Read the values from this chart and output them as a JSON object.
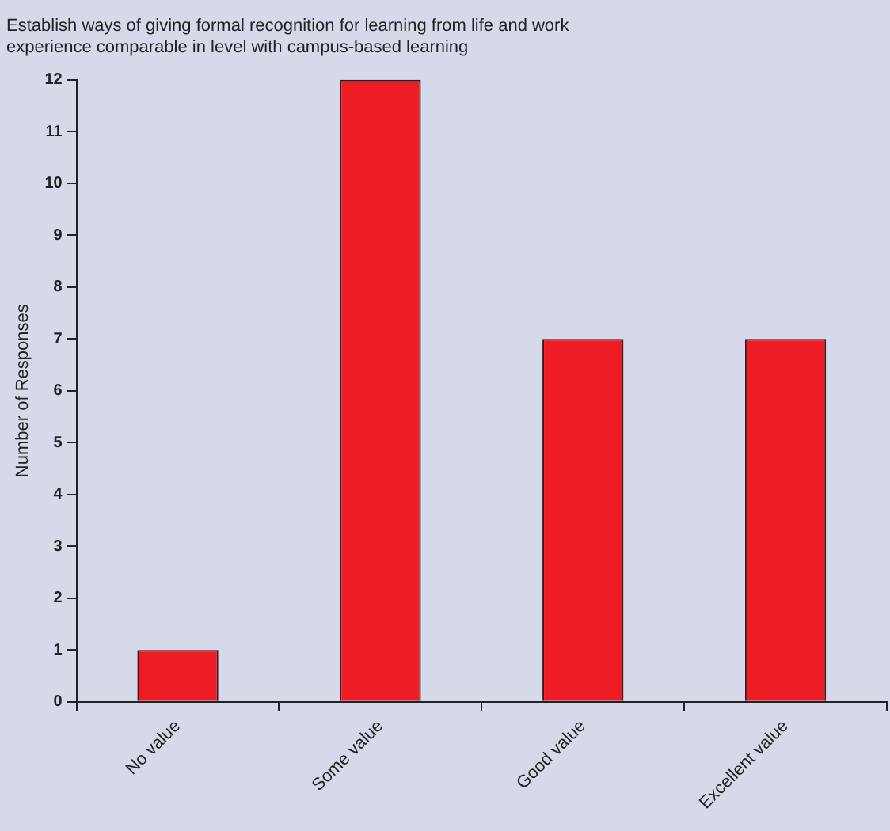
{
  "chart_data": {
    "type": "bar",
    "title": "Establish ways of giving formal recognition for learning from life and work\nexperience comparable in level with campus-based learning",
    "ylabel": "Number of Responses",
    "categories": [
      "No value",
      "Some value",
      "Good value",
      "Excellent value"
    ],
    "values": [
      1,
      12,
      7,
      7
    ],
    "color": "#ee1c25",
    "ylim": [
      0,
      12
    ],
    "yticks": [
      0,
      1,
      2,
      3,
      4,
      5,
      6,
      7,
      8,
      9,
      10,
      11,
      12
    ],
    "grid": false,
    "legend": false
  }
}
